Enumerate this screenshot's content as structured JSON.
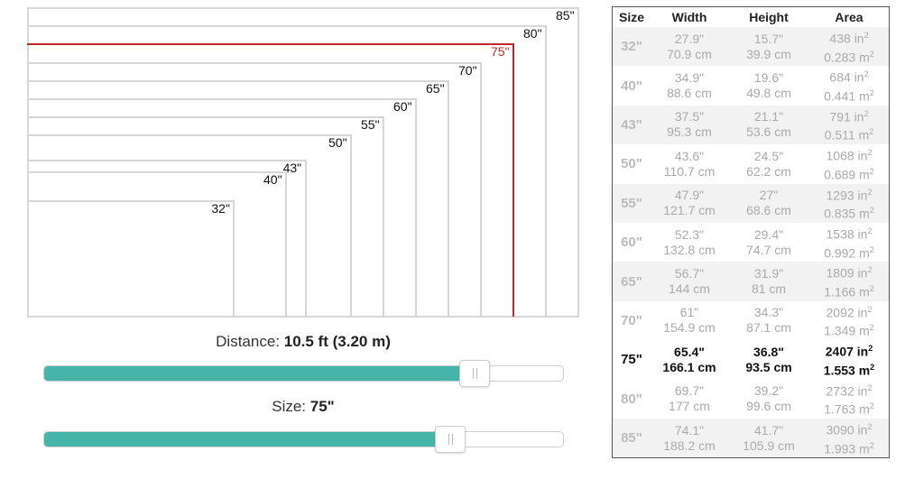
{
  "colors": {
    "accent": "#45b5aa",
    "selected_outline": "#c0272d",
    "outline": "#d6d6d6"
  },
  "diagram": {
    "sizes": [
      {
        "label": "85\"",
        "diag": 85,
        "active": false
      },
      {
        "label": "80\"",
        "diag": 80,
        "active": false
      },
      {
        "label": "75\"",
        "diag": 75,
        "active": true
      },
      {
        "label": "70\"",
        "diag": 70,
        "active": false
      },
      {
        "label": "65\"",
        "diag": 65,
        "active": false
      },
      {
        "label": "60\"",
        "diag": 60,
        "active": false
      },
      {
        "label": "55\"",
        "diag": 55,
        "active": false
      },
      {
        "label": "50\"",
        "diag": 50,
        "active": false
      },
      {
        "label": "43\"",
        "diag": 43,
        "active": false
      },
      {
        "label": "40\"",
        "diag": 40,
        "active": false
      },
      {
        "label": "32\"",
        "diag": 32,
        "active": false
      }
    ]
  },
  "distance": {
    "label": "Distance:",
    "value": "10.5 ft (3.20 m)",
    "level_percent": 82.6
  },
  "size": {
    "label": "Size:",
    "value": "75\"",
    "level_percent": 78
  },
  "table": {
    "headers": {
      "size": "Size",
      "width": "Width",
      "height": "Height",
      "area": "Area"
    },
    "rows": [
      {
        "size": "32\"",
        "w_in": "27.9\"",
        "w_cm": "70.9 cm",
        "h_in": "15.7\"",
        "h_cm": "39.9 cm",
        "a_in": "438 in",
        "a_m": "0.283 m",
        "selected": false
      },
      {
        "size": "40\"",
        "w_in": "34.9\"",
        "w_cm": "88.6 cm",
        "h_in": "19.6\"",
        "h_cm": "49.8 cm",
        "a_in": "684 in",
        "a_m": "0.441 m",
        "selected": false
      },
      {
        "size": "43\"",
        "w_in": "37.5\"",
        "w_cm": "95.3 cm",
        "h_in": "21.1\"",
        "h_cm": "53.6 cm",
        "a_in": "791 in",
        "a_m": "0.511 m",
        "selected": false
      },
      {
        "size": "50\"",
        "w_in": "43.6\"",
        "w_cm": "110.7 cm",
        "h_in": "24.5\"",
        "h_cm": "62.2 cm",
        "a_in": "1068 in",
        "a_m": "0.689 m",
        "selected": false
      },
      {
        "size": "55\"",
        "w_in": "47.9\"",
        "w_cm": "121.7 cm",
        "h_in": "27\"",
        "h_cm": "68.6 cm",
        "a_in": "1293 in",
        "a_m": "0.835 m",
        "selected": false
      },
      {
        "size": "60\"",
        "w_in": "52.3\"",
        "w_cm": "132.8 cm",
        "h_in": "29.4\"",
        "h_cm": "74.7 cm",
        "a_in": "1538 in",
        "a_m": "0.992 m",
        "selected": false
      },
      {
        "size": "65\"",
        "w_in": "56.7\"",
        "w_cm": "144 cm",
        "h_in": "31.9\"",
        "h_cm": "81 cm",
        "a_in": "1809 in",
        "a_m": "1.166 m",
        "selected": false
      },
      {
        "size": "70\"",
        "w_in": "61\"",
        "w_cm": "154.9 cm",
        "h_in": "34.3\"",
        "h_cm": "87.1 cm",
        "a_in": "2092 in",
        "a_m": "1.349 m",
        "selected": false
      },
      {
        "size": "75\"",
        "w_in": "65.4\"",
        "w_cm": "166.1 cm",
        "h_in": "36.8\"",
        "h_cm": "93.5 cm",
        "a_in": "2407 in",
        "a_m": "1.553 m",
        "selected": true
      },
      {
        "size": "80\"",
        "w_in": "69.7\"",
        "w_cm": "177 cm",
        "h_in": "39.2\"",
        "h_cm": "99.6 cm",
        "a_in": "2732 in",
        "a_m": "1.763 m",
        "selected": false
      },
      {
        "size": "85\"",
        "w_in": "74.1\"",
        "w_cm": "188.2 cm",
        "h_in": "41.7\"",
        "h_cm": "105.9 cm",
        "a_in": "3090 in",
        "a_m": "1.993 m",
        "selected": false
      }
    ],
    "superscript": "2"
  }
}
